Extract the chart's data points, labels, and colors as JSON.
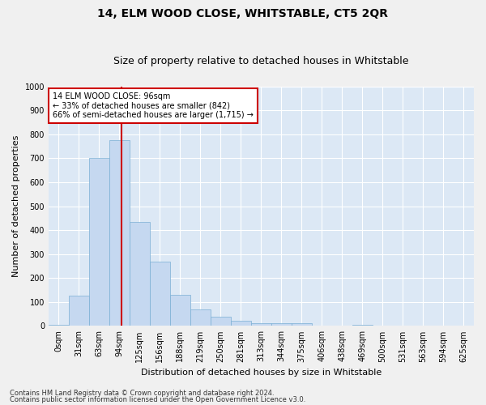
{
  "title": "14, ELM WOOD CLOSE, WHITSTABLE, CT5 2QR",
  "subtitle": "Size of property relative to detached houses in Whitstable",
  "xlabel": "Distribution of detached houses by size in Whitstable",
  "ylabel": "Number of detached properties",
  "bar_color": "#c5d8f0",
  "bar_edge_color": "#7aafd4",
  "background_color": "#dce8f5",
  "grid_color": "#ffffff",
  "categories": [
    "0sqm",
    "31sqm",
    "63sqm",
    "94sqm",
    "125sqm",
    "156sqm",
    "188sqm",
    "219sqm",
    "250sqm",
    "281sqm",
    "313sqm",
    "344sqm",
    "375sqm",
    "406sqm",
    "438sqm",
    "469sqm",
    "500sqm",
    "531sqm",
    "563sqm",
    "594sqm",
    "625sqm"
  ],
  "values": [
    5,
    125,
    700,
    775,
    435,
    270,
    130,
    68,
    38,
    22,
    12,
    10,
    10,
    2,
    0,
    5,
    0,
    0,
    0,
    0,
    0
  ],
  "vline_color": "#cc0000",
  "annotation_text": "14 ELM WOOD CLOSE: 96sqm\n← 33% of detached houses are smaller (842)\n66% of semi-detached houses are larger (1,715) →",
  "annotation_box_color": "#ffffff",
  "annotation_box_edge": "#cc0000",
  "ylim": [
    0,
    1000
  ],
  "yticks": [
    0,
    100,
    200,
    300,
    400,
    500,
    600,
    700,
    800,
    900,
    1000
  ],
  "footer1": "Contains HM Land Registry data © Crown copyright and database right 2024.",
  "footer2": "Contains public sector information licensed under the Open Government Licence v3.0.",
  "fig_bg": "#f0f0f0",
  "title_fontsize": 10,
  "subtitle_fontsize": 9,
  "tick_fontsize": 7,
  "ylabel_fontsize": 8,
  "xlabel_fontsize": 8,
  "annotation_fontsize": 7,
  "footer_fontsize": 6
}
